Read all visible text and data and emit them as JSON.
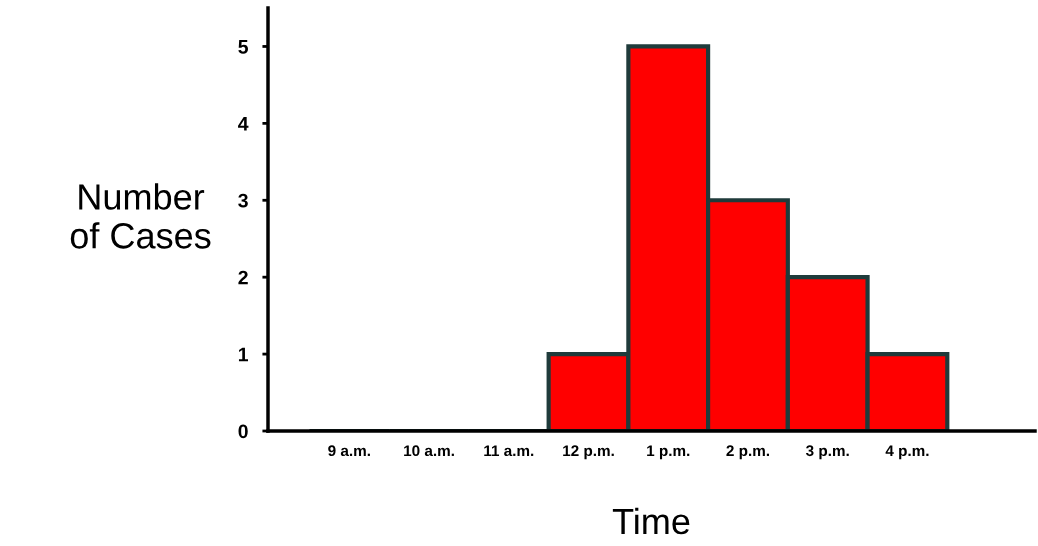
{
  "chart_data": {
    "type": "bar",
    "xlabel": "Time",
    "ylabel": "Number\nof Cases",
    "categories": [
      "9 a.m.",
      "10 a.m.",
      "11 a.m.",
      "12 p.m.",
      "1 p.m.",
      "2 p.m.",
      "3 p.m.",
      "4 p.m."
    ],
    "values": [
      0,
      0,
      0,
      1,
      5,
      3,
      2,
      1
    ],
    "color": "#ff0000",
    "ylim": [
      0,
      5.5
    ],
    "yticks": [
      0,
      1,
      2,
      3,
      4,
      5
    ],
    "grid": false,
    "legend": false
  }
}
